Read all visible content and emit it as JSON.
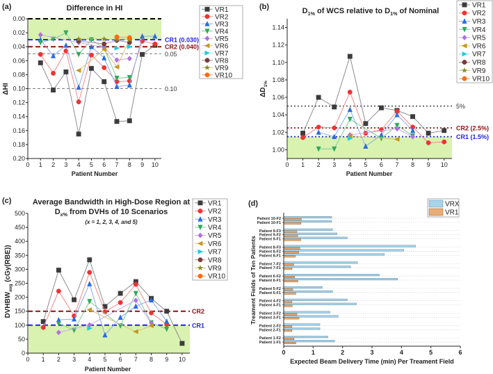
{
  "legend_names": [
    "VR1",
    "VR2",
    "VR3",
    "VR4",
    "VR5",
    "VR6",
    "VR7",
    "VR8",
    "VR9",
    "VR10"
  ],
  "series_colors": [
    "#3c3c3c",
    "#ee3333",
    "#2a6be0",
    "#2eaa5a",
    "#b070e0",
    "#c8961e",
    "#22ccdd",
    "#7a3a3a",
    "#8a8a20",
    "#ff6a10"
  ],
  "series_line_colors": [
    "#8c8c8c",
    "#f08a8a",
    "#8aaaf0",
    "#7acc98",
    "#caa6ee",
    "#ddc07a",
    "#8ae6ee",
    "#b08a8a",
    "#c0c080",
    "#ff9a60"
  ],
  "shade_color": "#d9f2b0",
  "chart_data": [
    {
      "type": "line",
      "panel_label": "(a)",
      "title": [
        {
          "text": "Difference in HI"
        }
      ],
      "title2": [],
      "subtitle": "",
      "xlabel": "Patient Number",
      "ylabel": [
        {
          "text": "ΔHI"
        }
      ],
      "xlim": [
        0,
        10.5
      ],
      "ylim": [
        0,
        0.2
      ],
      "y_inverted": true,
      "xticks": [
        "0",
        "1",
        "2",
        "3",
        "4",
        "5",
        "6",
        "7",
        "8",
        "9",
        "10"
      ],
      "yticks": [
        "0.00",
        "0.02",
        "0.04",
        "0.06",
        "0.08",
        "0.10",
        "0.12",
        "0.14",
        "0.16",
        "0.18",
        "0.20"
      ],
      "shaded_region": [
        0,
        0.03
      ],
      "ref_lines": [
        {
          "value": 0.0,
          "label": "",
          "color": "#000000",
          "style": "dash"
        },
        {
          "value": 0.03,
          "label": "CR1 (0.030)",
          "color": "#1f1fe6",
          "style": "dash"
        },
        {
          "value": 0.04,
          "label": "CR2 (0.040)",
          "color": "#8b1010",
          "style": "dash"
        },
        {
          "value": 0.05,
          "label": "0.05",
          "color": "#777777",
          "style": "thin"
        },
        {
          "value": 0.1,
          "label": "0.10",
          "color": "#777777",
          "style": "thin"
        }
      ],
      "legend": "top-right",
      "series": [
        {
          "name": "VR1",
          "values": [
            0.063,
            0.102,
            0.076,
            0.165,
            0.071,
            0.09,
            0.147,
            0.146,
            0.051,
            0.038
          ]
        },
        {
          "name": "VR2",
          "values": [
            0.051,
            0.078,
            0.046,
            0.119,
            0.052,
            0.07,
            0.09,
            0.089,
            0.032,
            0.036
          ]
        },
        {
          "name": "VR3",
          "values": [
            0.03,
            0.053,
            0.038,
            0.098,
            0.04,
            0.056,
            0.097,
            0.095,
            0.025,
            0.025
          ]
        },
        {
          "name": "VR4",
          "values": [
            0.034,
            0.029,
            0.02,
            0.051,
            0.03,
            0.042,
            0.085,
            0.084,
            null,
            null
          ]
        },
        {
          "name": "VR5",
          "values": [
            0.023,
            null,
            null,
            0.034,
            null,
            0.041,
            0.059,
            0.057,
            null,
            null
          ]
        },
        {
          "name": "VR6",
          "values": [
            null,
            null,
            null,
            0.074,
            null,
            0.044,
            0.069,
            0.03,
            null,
            null
          ]
        },
        {
          "name": "VR7",
          "values": [
            null,
            null,
            null,
            null,
            null,
            null,
            0.042,
            0.04,
            null,
            null
          ]
        },
        {
          "name": "VR8",
          "values": [
            null,
            null,
            null,
            0.032,
            null,
            0.036,
            0.031,
            0.034,
            null,
            null
          ]
        },
        {
          "name": "VR9",
          "values": [
            null,
            null,
            null,
            0.029,
            null,
            0.029,
            0.03,
            0.03,
            null,
            null
          ]
        },
        {
          "name": "VR10",
          "values": [
            null,
            null,
            null,
            null,
            null,
            null,
            0.026,
            0.027,
            null,
            null
          ]
        }
      ]
    },
    {
      "type": "line",
      "panel_label": "(b)",
      "title": [
        {
          "text": "D"
        },
        {
          "text": "1%",
          "sub": true
        },
        {
          "text": " of WCS relative to D"
        },
        {
          "text": "1%",
          "sub": true
        },
        {
          "text": " of Nominal"
        }
      ],
      "title2": [],
      "subtitle": "",
      "xlabel": "Patient Number",
      "ylabel": [
        {
          "text": "ΔD"
        },
        {
          "text": "1%",
          "sub": true
        }
      ],
      "xlim": [
        0,
        10.5
      ],
      "ylim": [
        0.99,
        1.15
      ],
      "y_inverted": false,
      "xticks": [
        "0",
        "1",
        "2",
        "3",
        "4",
        "5",
        "6",
        "7",
        "8",
        "9",
        "10"
      ],
      "yticks": [
        "1.00",
        "1.02",
        "1.04",
        "1.06",
        "1.08",
        "1.10",
        "1.12",
        "1.14"
      ],
      "shaded_region": [
        0.99,
        1.015
      ],
      "ref_lines": [
        {
          "value": 1.05,
          "label": "5%",
          "color": "#555555",
          "style": "dot"
        },
        {
          "value": 1.025,
          "label": "CR2 (2.5%)",
          "color": "#8b1010",
          "style": "dot"
        },
        {
          "value": 1.015,
          "label": "CR1 (1.5%)",
          "color": "#1f1fe6",
          "style": "dot"
        }
      ],
      "legend": "top-right",
      "series": [
        {
          "name": "VR1",
          "values": [
            1.019,
            1.06,
            1.049,
            1.107,
            1.03,
            1.048,
            1.045,
            1.038,
            1.019,
            1.022
          ]
        },
        {
          "name": "VR2",
          "values": [
            1.014,
            1.026,
            1.025,
            1.066,
            1.019,
            1.023,
            1.044,
            1.026,
            1.008,
            1.009
          ]
        },
        {
          "name": "VR3",
          "values": [
            null,
            1.02,
            1.015,
            1.046,
            1.004,
            1.017,
            1.04,
            1.022,
            null,
            null
          ]
        },
        {
          "name": "VR4",
          "values": [
            null,
            1.001,
            1.001,
            1.035,
            null,
            1.013,
            1.028,
            1.016,
            null,
            null
          ]
        },
        {
          "name": "VR5",
          "values": [
            null,
            null,
            null,
            1.017,
            null,
            null,
            1.024,
            1.015,
            null,
            null
          ]
        },
        {
          "name": "VR6",
          "values": [
            null,
            null,
            null,
            1.016,
            null,
            null,
            1.012,
            null,
            null,
            null
          ]
        },
        {
          "name": "VR7",
          "values": [
            null,
            null,
            null,
            1.013,
            null,
            null,
            null,
            null,
            null,
            null
          ]
        },
        {
          "name": "VR8",
          "values": [
            null,
            null,
            null,
            null,
            null,
            null,
            null,
            null,
            null,
            null
          ]
        },
        {
          "name": "VR9",
          "values": [
            null,
            null,
            null,
            null,
            null,
            null,
            null,
            null,
            null,
            null
          ]
        },
        {
          "name": "VR10",
          "values": [
            null,
            null,
            null,
            null,
            null,
            null,
            null,
            null,
            null,
            null
          ]
        }
      ]
    },
    {
      "type": "line",
      "panel_label": "(c)",
      "title": [
        {
          "text": "Average Bandwidth in High-Dose Region at"
        }
      ],
      "title2": [
        {
          "text": "D"
        },
        {
          "text": "x%",
          "sub": true
        },
        {
          "text": " from DVHs of 10 Scenarios"
        }
      ],
      "subtitle": "(x = 1, 2, 3, 4, and 5)",
      "xlabel": "Patient Number",
      "ylabel": [
        {
          "text": "DVHBW"
        },
        {
          "text": "avg",
          "sub": true
        },
        {
          "text": " (cGy(RBE))"
        }
      ],
      "xlim": [
        0,
        10.5
      ],
      "ylim": [
        0,
        500
      ],
      "y_inverted": false,
      "xticks": [
        "0",
        "1",
        "2",
        "3",
        "4",
        "5",
        "6",
        "7",
        "8",
        "9",
        "10"
      ],
      "yticks": [
        "0",
        "50",
        "100",
        "150",
        "200",
        "250",
        "300",
        "350",
        "400",
        "450",
        "500"
      ],
      "shaded_region": [
        0,
        100
      ],
      "ref_lines": [
        {
          "value": 150,
          "label": "CR2",
          "color": "#8b1010",
          "style": "dash"
        },
        {
          "value": 100,
          "label": "CR1",
          "color": "#1f1fe6",
          "style": "dash"
        }
      ],
      "legend": "top-right",
      "series": [
        {
          "name": "VR1",
          "values": [
            113,
            297,
            191,
            334,
            167,
            214,
            256,
            196,
            150,
            35
          ]
        },
        {
          "name": "VR2",
          "values": [
            92,
            222,
            133,
            289,
            148,
            181,
            246,
            144,
            103,
            null
          ]
        },
        {
          "name": "VR3",
          "values": [
            null,
            119,
            122,
            248,
            65,
            128,
            168,
            190,
            114,
            null
          ]
        },
        {
          "name": "VR4",
          "values": [
            null,
            106,
            82,
            185,
            null,
            98,
            214,
            109,
            86,
            null
          ]
        },
        {
          "name": "VR5",
          "values": [
            null,
            74,
            null,
            101,
            null,
            null,
            189,
            108,
            null,
            null
          ]
        },
        {
          "name": "VR6",
          "values": [
            null,
            null,
            null,
            155,
            null,
            null,
            77,
            98,
            null,
            null
          ]
        },
        {
          "name": "VR7",
          "values": [
            null,
            null,
            null,
            89,
            null,
            null,
            null,
            null,
            null,
            null
          ]
        },
        {
          "name": "VR8",
          "values": [
            null,
            null,
            null,
            null,
            null,
            null,
            null,
            null,
            null,
            null
          ]
        },
        {
          "name": "VR9",
          "values": [
            null,
            null,
            null,
            null,
            null,
            null,
            null,
            null,
            null,
            null
          ]
        },
        {
          "name": "VR10",
          "values": [
            null,
            null,
            null,
            null,
            null,
            null,
            null,
            null,
            null,
            null
          ]
        }
      ]
    },
    {
      "type": "bar",
      "orientation": "horizontal",
      "panel_label": "(d)",
      "xlabel": "Expected Beam Delivery Time (min) Per Treament Field",
      "ylabel": "Treament Fields of Ten Patients",
      "xlim": [
        0,
        6
      ],
      "xticks": [
        "0",
        "1",
        "2",
        "3",
        "4",
        "5",
        "6"
      ],
      "legend": "top-right",
      "series_colors": {
        "VRX": "#a8d4ea",
        "VR1": "#e8ad78"
      },
      "categories": [
        "Patient 10-F2",
        "Patient 10-F1",
        "Patient 9-F3",
        "Patient 9-F2",
        "Patient 9-F1",
        "Patient 8-F3",
        "Patient 8-F2",
        "Patient 8-F1",
        "Patient 7-F2",
        "Patient 7-F1",
        "Patient 6-F2",
        "Patient 6-F1",
        "Patient 5-F2",
        "Patient 5-F1",
        "Patient 4-F2",
        "Patient 4-F1",
        "Patient 3-F2",
        "Patient 3-F1",
        "Patient 2-F2",
        "Patient 2-F1",
        "Patient 1-F2",
        "Patient 1-F1"
      ],
      "groups": [
        10,
        10,
        9,
        9,
        9,
        8,
        8,
        8,
        7,
        7,
        6,
        6,
        5,
        5,
        4,
        4,
        3,
        3,
        2,
        2,
        1,
        1
      ],
      "series": [
        {
          "name": "VRX",
          "values": [
            1.63,
            1.63,
            1.66,
            1.81,
            2.16,
            4.48,
            4.08,
            3.42,
            2.51,
            2.27,
            3.25,
            3.87,
            1.31,
            1.66,
            2.16,
            2.47,
            1.57,
            1.85,
            1.23,
            1.23,
            1.5,
            1.73
          ]
        },
        {
          "name": "VR1",
          "values": [
            0.6,
            0.59,
            0.45,
            0.48,
            0.58,
            0.55,
            0.51,
            0.4,
            0.34,
            0.28,
            0.37,
            0.48,
            0.31,
            0.41,
            0.28,
            0.29,
            0.45,
            0.52,
            0.28,
            0.28,
            0.35,
            0.41
          ]
        }
      ]
    }
  ]
}
